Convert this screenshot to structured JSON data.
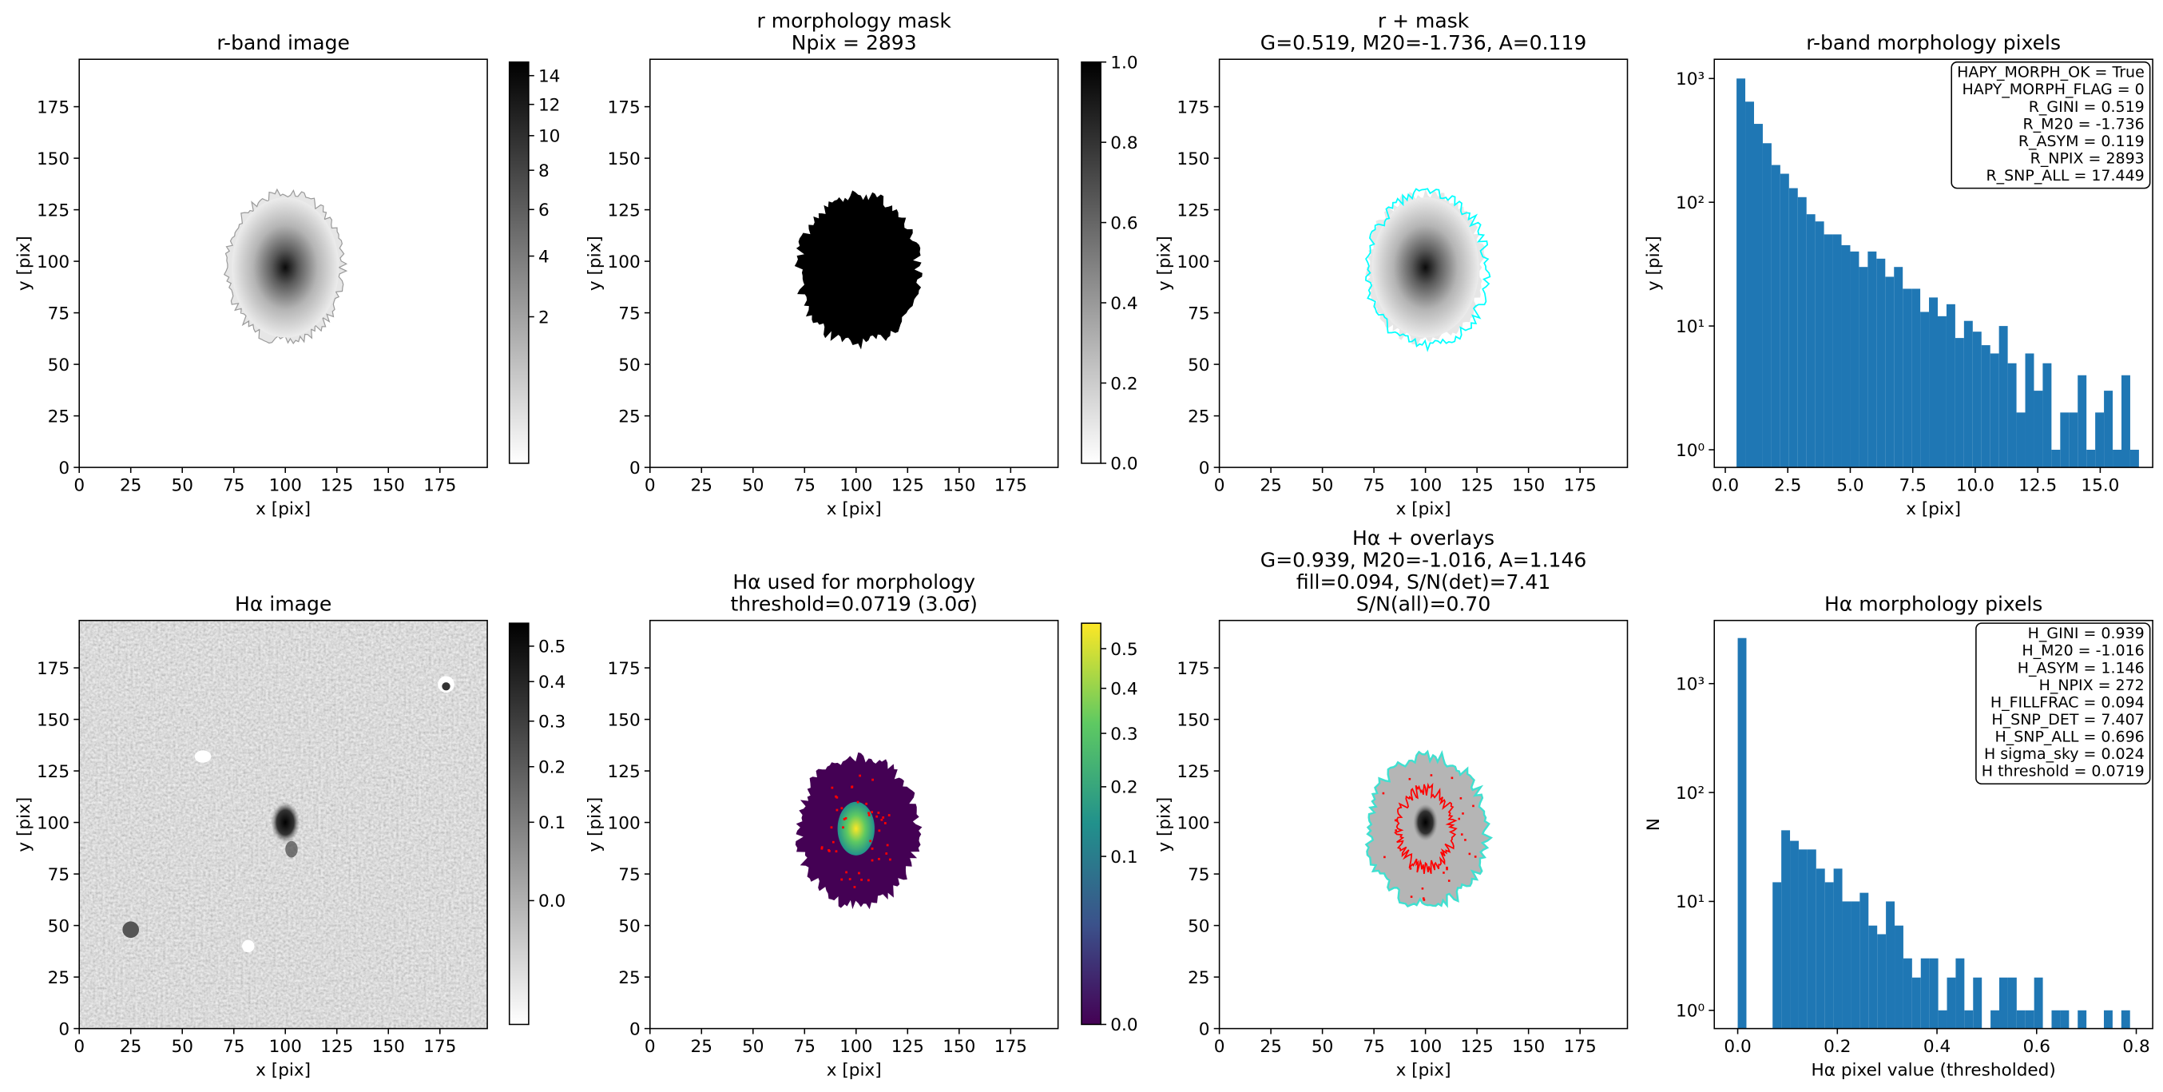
{
  "chart_data": [
    {
      "type": "image",
      "title": [
        "r-band image"
      ],
      "xlabel": "x [pix]",
      "ylabel": "y [pix]",
      "xlim": [
        0,
        198
      ],
      "ylim": [
        0,
        198
      ],
      "xticks": [
        0,
        25,
        50,
        75,
        100,
        125,
        150,
        175
      ],
      "yticks": [
        0,
        25,
        50,
        75,
        100,
        125,
        150,
        175
      ],
      "colorbar": {
        "lim": [
          0,
          15
        ],
        "ticks": [
          2,
          4,
          6,
          8,
          10,
          12,
          14
        ],
        "scale": "sqrt",
        "cmap": "gray_r"
      }
    },
    {
      "type": "image",
      "title": [
        "r morphology mask",
        "Npix = 2893"
      ],
      "xlabel": "x [pix]",
      "ylabel": "y [pix]",
      "xlim": [
        0,
        198
      ],
      "ylim": [
        0,
        198
      ],
      "xticks": [
        0,
        25,
        50,
        75,
        100,
        125,
        150,
        175
      ],
      "yticks": [
        0,
        25,
        50,
        75,
        100,
        125,
        150,
        175
      ],
      "colorbar": {
        "lim": [
          0,
          1
        ],
        "ticks": [
          {
            "value": 0,
            "label": "0.0"
          },
          0.2,
          0.4,
          0.6,
          0.8,
          {
            "value": 1,
            "label": "1.0"
          }
        ],
        "scale": "linear",
        "cmap": "gray_r"
      }
    },
    {
      "type": "image",
      "title": [
        "r + mask",
        "G=0.519, M20=-1.736, A=0.119"
      ],
      "xlabel": "x [pix]",
      "ylabel": "y [pix]",
      "xlim": [
        0,
        198
      ],
      "ylim": [
        0,
        198
      ],
      "xticks": [
        0,
        25,
        50,
        75,
        100,
        125,
        150,
        175
      ],
      "yticks": [
        0,
        25,
        50,
        75,
        100,
        125,
        150,
        175
      ]
    },
    {
      "type": "histogram",
      "title": [
        "r-band morphology pixels"
      ],
      "xlabel": "x [pix]",
      "ylabel": "y [pix]",
      "color": "#1f77b4",
      "log_y": true,
      "bins": [
        0.45,
        0.8,
        1.15,
        1.5,
        1.85,
        2.2,
        2.55,
        2.9,
        3.25,
        3.6,
        3.95,
        4.3,
        4.65,
        5,
        5.35,
        5.7,
        6.05,
        6.4,
        6.75,
        7.1,
        7.45,
        7.8,
        8.15,
        8.5,
        8.85,
        9.2,
        9.55,
        9.9,
        10.25,
        10.6,
        10.95,
        11.3,
        11.65,
        12,
        12.35,
        12.7,
        13.05,
        13.4,
        13.75,
        14.1,
        14.45,
        14.8,
        15.15,
        15.5,
        15.85,
        16.2,
        16.55
      ],
      "values": [
        1000,
        650,
        430,
        300,
        200,
        170,
        130,
        110,
        80,
        70,
        55,
        55,
        45,
        40,
        30,
        40,
        35,
        25,
        30,
        20,
        20,
        13,
        17,
        12,
        15,
        8,
        11,
        9,
        7,
        6,
        10,
        5,
        2,
        6,
        3,
        5,
        1,
        2,
        2,
        4,
        1,
        2,
        3,
        1,
        4,
        1
      ],
      "xlim": [
        -0.44,
        17.1
      ],
      "ylim": [
        0.72,
        1430
      ],
      "xticks": [
        {
          "value": 0,
          "label": "0.0"
        },
        2.5,
        {
          "value": 5,
          "label": "5.0"
        },
        7.5,
        {
          "value": 10,
          "label": "10.0"
        },
        12.5,
        {
          "value": 15,
          "label": "15.0"
        }
      ],
      "yticks": [
        {
          "value": 1,
          "label": "10⁰"
        },
        {
          "value": 10,
          "label": "10¹"
        },
        {
          "value": 100,
          "label": "10²"
        },
        {
          "value": 1000,
          "label": "10³"
        }
      ],
      "info_box": [
        "HAPY_MORPH_OK = True",
        "HAPY_MORPH_FLAG = 0",
        "R_GINI = 0.519",
        "R_M20 = -1.736",
        "R_ASYM = 0.119",
        "R_NPIX = 2893",
        "R_SNP_ALL = 17.449"
      ]
    },
    {
      "type": "image",
      "title": [
        "Hα image"
      ],
      "xlabel": "x [pix]",
      "ylabel": "y [pix]",
      "xlim": [
        0,
        198
      ],
      "ylim": [
        0,
        198
      ],
      "xticks": [
        0,
        25,
        50,
        75,
        100,
        125,
        150,
        175
      ],
      "yticks": [
        0,
        25,
        50,
        75,
        100,
        125,
        150,
        175
      ],
      "colorbar": {
        "lim": [
          -0.06,
          0.57
        ],
        "ticks": [
          {
            "value": 0,
            "label": "0.0"
          },
          0.1,
          0.2,
          0.3,
          0.4,
          0.5
        ],
        "scale": "sqrt",
        "cmap": "gray_r"
      }
    },
    {
      "type": "image",
      "title": [
        "Hα used for morphology",
        "threshold=0.0719 (3.0σ)"
      ],
      "xlabel": "x [pix]",
      "ylabel": "y [pix]",
      "xlim": [
        0,
        198
      ],
      "ylim": [
        0,
        198
      ],
      "xticks": [
        0,
        25,
        50,
        75,
        100,
        125,
        150,
        175
      ],
      "yticks": [
        0,
        25,
        50,
        75,
        100,
        125,
        150,
        175
      ],
      "colorbar": {
        "lim": [
          0,
          0.57
        ],
        "ticks": [
          {
            "value": 0,
            "label": "0.0"
          },
          0.1,
          0.2,
          0.3,
          0.4,
          0.5
        ],
        "scale": "sqrt",
        "cmap": "viridis"
      }
    },
    {
      "type": "image",
      "title": [
        "Hα + overlays",
        "G=0.939, M20=-1.016, A=1.146",
        "fill=0.094, S/N(det)=7.41",
        "S/N(all)=0.70"
      ],
      "xlabel": "x [pix]",
      "ylabel": "y [pix]",
      "xlim": [
        0,
        198
      ],
      "ylim": [
        0,
        198
      ],
      "xticks": [
        0,
        25,
        50,
        75,
        100,
        125,
        150,
        175
      ],
      "yticks": [
        0,
        25,
        50,
        75,
        100,
        125,
        150,
        175
      ]
    },
    {
      "type": "histogram",
      "title": [
        "Hα morphology pixels"
      ],
      "xlabel": "Hα pixel value (thresholded)",
      "ylabel": "N",
      "color": "#1f77b4",
      "log_y": true,
      "bins": [
        0,
        0.0175,
        0.035,
        0.0525,
        0.07,
        0.0875,
        0.105,
        0.1225,
        0.14,
        0.1575,
        0.175,
        0.1925,
        0.21,
        0.2275,
        0.245,
        0.2625,
        0.28,
        0.2975,
        0.315,
        0.3325,
        0.35,
        0.3675,
        0.385,
        0.4025,
        0.42,
        0.4375,
        0.455,
        0.4725,
        0.49,
        0.5075,
        0.525,
        0.5425,
        0.56,
        0.5775,
        0.595,
        0.6125,
        0.63,
        0.6475,
        0.665,
        0.6825,
        0.7,
        0.7175,
        0.735,
        0.7525,
        0.77,
        0.7875
      ],
      "values": [
        2620,
        0,
        0,
        0,
        15,
        45,
        36,
        30,
        30,
        20,
        15,
        20,
        10,
        10,
        12,
        6,
        5,
        10,
        6,
        3,
        2,
        3,
        3,
        1,
        2,
        3,
        1,
        2,
        0,
        1,
        2,
        2,
        1,
        1,
        2,
        0,
        1,
        1,
        0,
        1,
        0,
        0,
        1,
        0,
        1
      ],
      "xlim": [
        -0.047,
        0.833
      ],
      "ylim": [
        0.68,
        3800
      ],
      "xticks": [
        {
          "value": 0,
          "label": "0.0"
        },
        0.2,
        0.4,
        0.6,
        0.8
      ],
      "yticks": [
        {
          "value": 1,
          "label": "10⁰"
        },
        {
          "value": 10,
          "label": "10¹"
        },
        {
          "value": 100,
          "label": "10²"
        },
        {
          "value": 1000,
          "label": "10³"
        }
      ],
      "info_box": [
        "H_GINI = 0.939",
        "H_M20 = -1.016",
        "H_ASYM = 1.146",
        "H_NPIX = 272",
        "H_FILLFRAC = 0.094",
        "H_SNP_DET = 7.407",
        "H_SNP_ALL = 0.696",
        "H sigma_sky = 0.024",
        "H threshold = 0.0719"
      ]
    }
  ]
}
